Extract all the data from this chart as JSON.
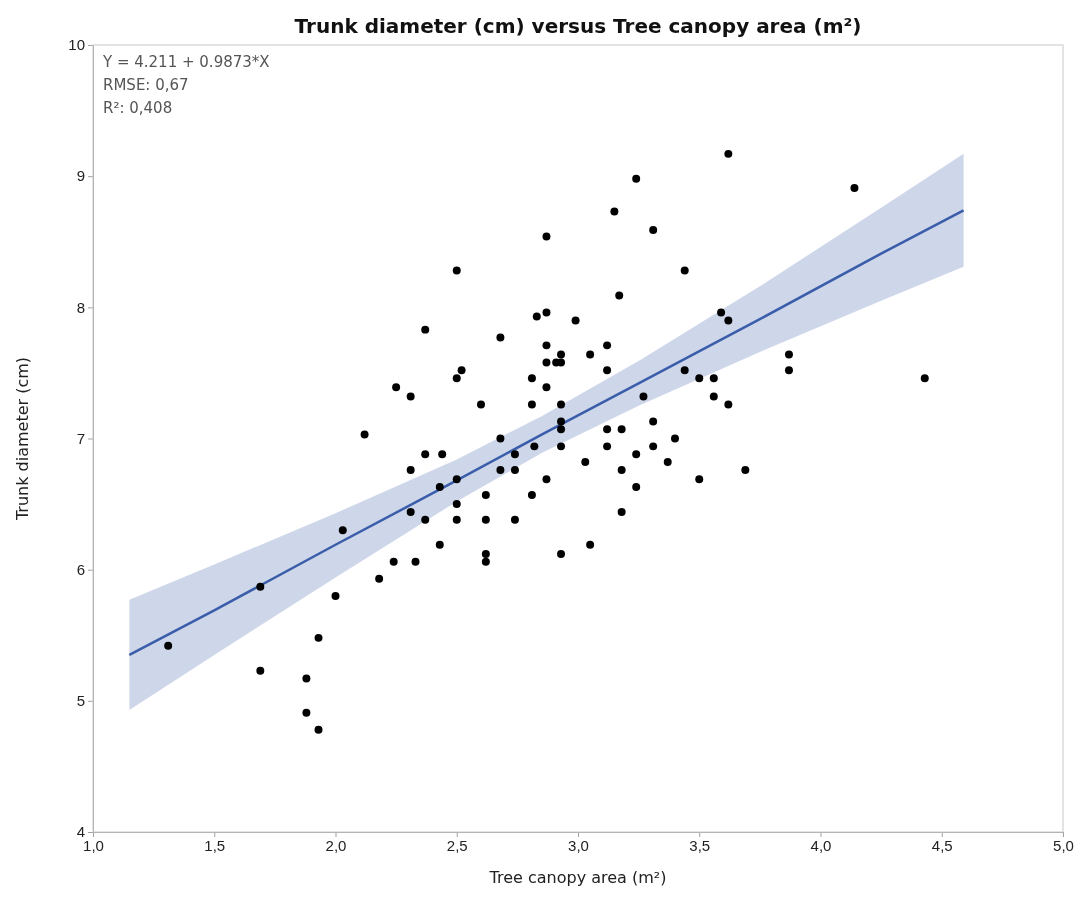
{
  "chart_data": {
    "type": "scatter",
    "title": "Trunk diameter (cm) versus Tree canopy area (m²)",
    "xlabel": "Tree canopy area (m²)",
    "ylabel": "Trunk diameter (cm)",
    "annotations": [
      "Y = 4.211 + 0.9873*X",
      "RMSE: 0,67",
      "R²: 0,408"
    ],
    "xlim": [
      1,
      5
    ],
    "xticks": [
      {
        "value": 1,
        "label": "1,0"
      },
      {
        "value": 1.5,
        "label": "1,5"
      },
      {
        "value": 2,
        "label": "2,0"
      },
      {
        "value": 2.5,
        "label": "2,5"
      },
      {
        "value": 3,
        "label": "3,0"
      },
      {
        "value": 3.5,
        "label": "3,5"
      },
      {
        "value": 4,
        "label": "4,0"
      },
      {
        "value": 4.5,
        "label": "4,5"
      },
      {
        "value": 5,
        "label": "5,0"
      }
    ],
    "ylim": [
      4,
      10
    ],
    "yticks": [
      4,
      5,
      6,
      7,
      8,
      9,
      10
    ],
    "grid": false,
    "marker": "circle",
    "series": [
      {
        "type": "line",
        "color": "#3a5daa",
        "line_style": "solid",
        "marker": "none",
        "x": [
          1.15,
          1.5,
          2.0,
          2.5,
          2.85,
          3.25,
          3.75,
          4.25,
          4.59
        ],
        "values": [
          5.35,
          5.69,
          6.19,
          6.68,
          7.03,
          7.42,
          7.91,
          8.41,
          8.74
        ],
        "lower": [
          4.93,
          5.35,
          5.94,
          6.52,
          6.89,
          7.25,
          7.66,
          8.05,
          8.31
        ],
        "upper": [
          5.77,
          6.04,
          6.43,
          6.84,
          7.17,
          7.59,
          8.16,
          8.76,
          9.17
        ]
      },
      {
        "color": "#000000",
        "x": [
          1.31,
          1.69,
          1.69,
          1.88,
          1.88,
          1.93,
          1.93,
          2.0,
          2.03,
          2.12,
          2.18,
          2.24,
          2.25,
          2.31,
          2.31,
          2.31,
          2.33,
          2.37,
          2.37,
          2.37,
          2.43,
          2.44,
          2.43,
          2.5,
          2.5,
          2.5,
          2.5,
          2.52,
          2.5,
          2.6,
          2.62,
          2.62,
          2.62,
          2.62,
          2.68,
          2.68,
          2.68,
          2.74,
          2.74,
          2.74,
          2.81,
          2.81,
          2.81,
          2.82,
          2.83,
          2.87,
          2.87,
          2.87,
          2.87,
          2.87,
          2.87,
          2.91,
          2.93,
          2.93,
          2.93,
          2.93,
          2.93,
          2.93,
          2.93,
          2.99,
          3.03,
          3.05,
          3.05,
          3.12,
          3.12,
          3.12,
          3.12,
          3.15,
          3.17,
          3.18,
          3.18,
          3.18,
          3.24,
          3.24,
          3.24,
          3.27,
          3.31,
          3.31,
          3.31,
          3.37,
          3.4,
          3.44,
          3.44,
          3.5,
          3.5,
          3.56,
          3.56,
          3.59,
          3.62,
          3.62,
          3.62,
          3.69,
          3.87,
          3.87,
          4.14,
          4.43
        ],
        "values": [
          5.42,
          5.87,
          5.23,
          5.17,
          4.91,
          4.78,
          5.48,
          5.8,
          6.3,
          7.03,
          5.93,
          6.06,
          7.39,
          7.32,
          6.76,
          6.44,
          6.06,
          7.83,
          6.88,
          6.38,
          6.19,
          6.88,
          6.63,
          7.46,
          6.69,
          6.5,
          6.38,
          7.52,
          8.28,
          7.26,
          6.57,
          6.38,
          6.12,
          6.06,
          7.0,
          6.76,
          7.77,
          6.88,
          6.76,
          6.38,
          7.46,
          7.26,
          6.57,
          6.94,
          7.93,
          7.96,
          8.54,
          7.71,
          7.58,
          7.39,
          6.69,
          7.58,
          7.58,
          7.64,
          7.26,
          7.13,
          7.07,
          6.94,
          6.12,
          7.9,
          6.82,
          6.19,
          7.64,
          7.71,
          7.52,
          7.07,
          6.94,
          8.73,
          8.09,
          7.07,
          6.76,
          6.44,
          8.98,
          6.88,
          6.63,
          7.32,
          8.59,
          7.13,
          6.94,
          6.82,
          7.0,
          8.28,
          7.52,
          7.46,
          6.69,
          7.46,
          7.32,
          7.96,
          7.9,
          7.26,
          9.17,
          6.76,
          7.64,
          7.52,
          8.91,
          7.46
        ]
      }
    ]
  }
}
